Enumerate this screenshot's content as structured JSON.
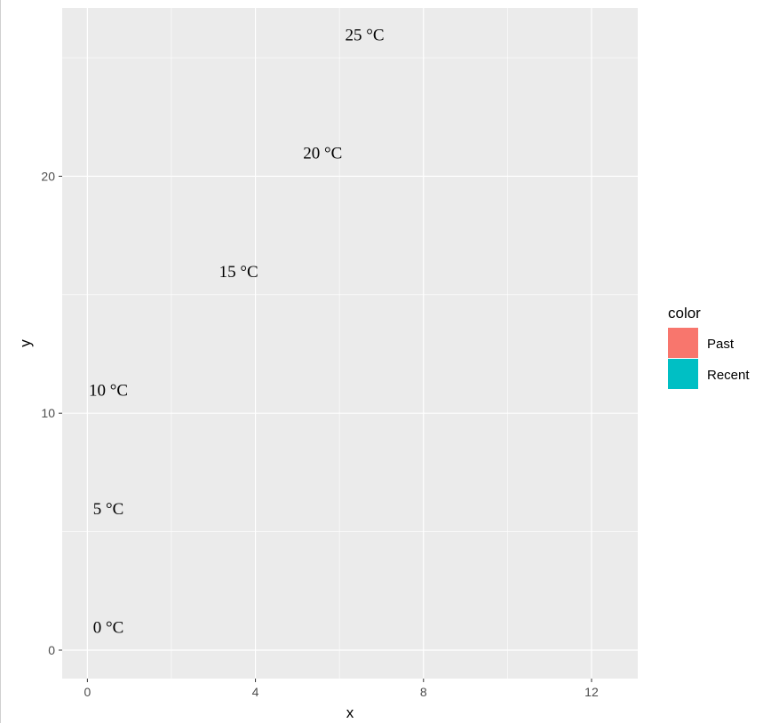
{
  "chart_data": {
    "type": "scatter",
    "xlabel": "x",
    "ylabel": "y",
    "xlim": [
      -0.6,
      13.1
    ],
    "ylim": [
      -1.2,
      27.1
    ],
    "x_ticks": [
      0,
      4,
      8,
      12
    ],
    "y_ticks": [
      0,
      10,
      20
    ],
    "grid": true,
    "annotations": [
      {
        "x": 0.5,
        "y": 1,
        "label": "0 °C"
      },
      {
        "x": 0.5,
        "y": 6,
        "label": "5 °C"
      },
      {
        "x": 0.5,
        "y": 11,
        "label": "10 °C"
      },
      {
        "x": 3.6,
        "y": 16,
        "label": "15 °C"
      },
      {
        "x": 5.6,
        "y": 21,
        "label": "20 °C"
      },
      {
        "x": 6.6,
        "y": 26,
        "label": "25 °C"
      }
    ],
    "legend": {
      "title": "color",
      "position": "right",
      "items": [
        {
          "label": "Past",
          "color": "#F8766D"
        },
        {
          "label": "Recent",
          "color": "#00BFC4"
        }
      ]
    },
    "colors": {
      "panel": "#EBEBEB",
      "grid": "#FFFFFF",
      "text": "#4D4D4D"
    }
  }
}
